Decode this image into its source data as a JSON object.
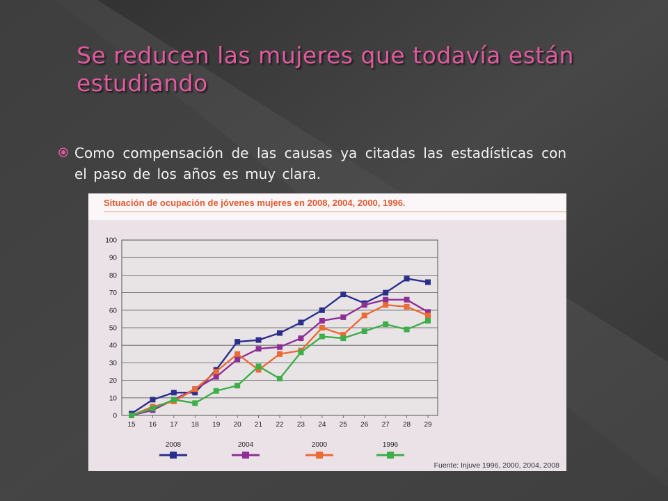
{
  "slide": {
    "title": "Se reducen las mujeres que todavía están estudiando",
    "bullet": "Como compensación de las causas ya citadas las estadísticas con el paso de los años es muy clara."
  },
  "figure": {
    "title": "Situación de ocupación de jóvenes mujeres en 2008, 2004, 2000, 1996.",
    "source": "Fuente: Injuve 1996, 2000, 2004, 2008",
    "title_color": "#e05a30"
  },
  "colors": {
    "title": "#e05a9e",
    "background": "#3c3c3c"
  },
  "chart_data": {
    "type": "line",
    "title": "Situación de ocupación de jóvenes mujeres en 2008, 2004, 2000, 1996.",
    "xlabel": "",
    "ylabel": "",
    "x": [
      15,
      16,
      17,
      18,
      19,
      20,
      21,
      22,
      23,
      24,
      25,
      26,
      27,
      28,
      29
    ],
    "ylim": [
      0,
      100
    ],
    "yticks": [
      0,
      10,
      20,
      30,
      40,
      50,
      60,
      70,
      80,
      90,
      100
    ],
    "grid": true,
    "legend": "bottom",
    "series": [
      {
        "name": "2008",
        "color": "#2b2f8c",
        "values": [
          1,
          9,
          13,
          13,
          26,
          42,
          43,
          47,
          53,
          60,
          69,
          64,
          70,
          78,
          76
        ]
      },
      {
        "name": "2004",
        "color": "#8e2f96",
        "values": [
          0,
          3,
          9,
          15,
          22,
          32,
          38,
          39,
          44,
          54,
          56,
          63,
          66,
          66,
          59
        ]
      },
      {
        "name": "2000",
        "color": "#ec6a34",
        "values": [
          0,
          5,
          8,
          15,
          25,
          35,
          26,
          35,
          37,
          50,
          46,
          57,
          63,
          62,
          57
        ]
      },
      {
        "name": "1996",
        "color": "#3dae48",
        "values": [
          0,
          4,
          9,
          7,
          14,
          17,
          28,
          21,
          36,
          45,
          44,
          48,
          52,
          49,
          54
        ]
      }
    ]
  }
}
